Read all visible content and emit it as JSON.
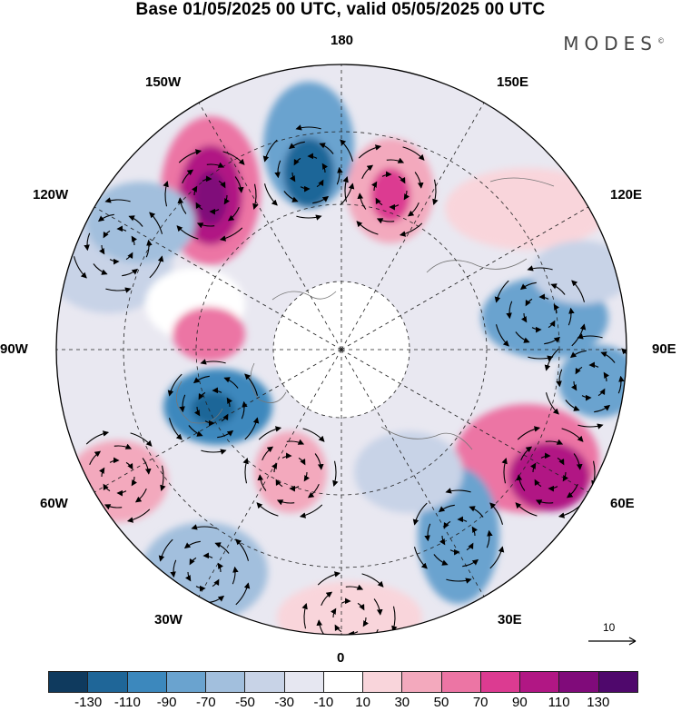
{
  "title": "Base 01/05/2025 00 UTC, valid 05/05/2025 00 UTC",
  "brand": {
    "name": "MODES",
    "mark": "©"
  },
  "longitude_labels": {
    "top": "180",
    "top_right": "150E",
    "right_upper": "120E",
    "right": "90E",
    "right_lower": "60E",
    "bottom_right": "30E",
    "bottom": "0",
    "bottom_left": "30W",
    "left_lower": "60W",
    "left": "90W",
    "left_upper": "120W",
    "top_left": "150W"
  },
  "vector_reference": {
    "value": "10"
  },
  "colorbar": {
    "colors": [
      "#0f3a5e",
      "#1f6698",
      "#3c88bd",
      "#6aa3cf",
      "#a2bfdd",
      "#c8d3e7",
      "#e6e7f1",
      "#ffffff",
      "#f9d5db",
      "#f3a9bd",
      "#ec75a4",
      "#dc3b91",
      "#b11784",
      "#800b7a",
      "#4f086c"
    ],
    "tick_labels": [
      "-130",
      "-110",
      "-90",
      "-70",
      "-50",
      "-30",
      "-10",
      "10",
      "30",
      "50",
      "70",
      "90",
      "110",
      "130"
    ]
  }
}
